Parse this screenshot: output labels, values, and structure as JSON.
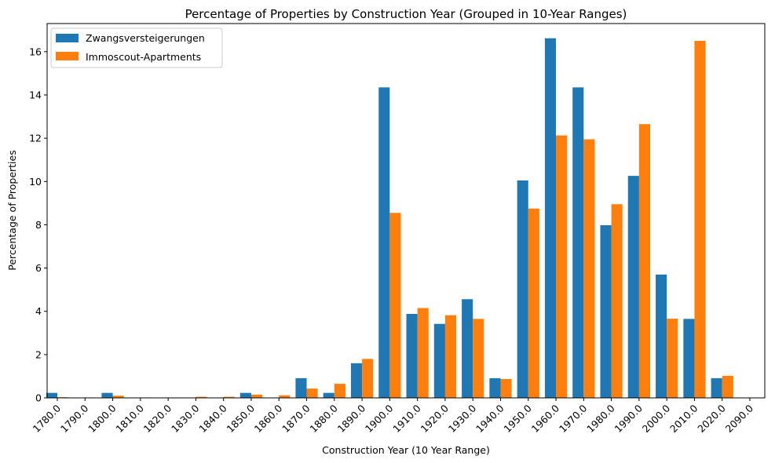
{
  "chart_data": {
    "type": "bar",
    "title": "Percentage of Properties by Construction Year (Grouped in 10-Year Ranges)",
    "xlabel": "Construction Year (10 Year Range)",
    "ylabel": "Percentage of Properties",
    "ylim": [
      0,
      17.3
    ],
    "yticks": [
      0,
      2,
      4,
      6,
      8,
      10,
      12,
      14,
      16
    ],
    "legend_position": "top-left",
    "grid": false,
    "categories": [
      "1780.0",
      "1790.0",
      "1800.0",
      "1810.0",
      "1820.0",
      "1830.0",
      "1840.0",
      "1850.0",
      "1860.0",
      "1870.0",
      "1880.0",
      "1890.0",
      "1900.0",
      "1910.0",
      "1920.0",
      "1930.0",
      "1940.0",
      "1950.0",
      "1960.0",
      "1970.0",
      "1980.0",
      "1990.0",
      "2000.0",
      "2010.0",
      "2020.0",
      "2090.0"
    ],
    "series": [
      {
        "name": "Zwangsversteigerungen",
        "color": "#1f77b4",
        "values": [
          0.23,
          0,
          0.23,
          0,
          0,
          0,
          0,
          0.23,
          0,
          0.91,
          0.23,
          1.6,
          14.35,
          3.88,
          3.42,
          4.56,
          0.91,
          10.05,
          16.62,
          14.35,
          7.98,
          10.26,
          5.7,
          3.65,
          0.91,
          0
        ]
      },
      {
        "name": "Immoscout-Apartments",
        "color": "#ff7f0e",
        "values": [
          0.03,
          0.02,
          0.1,
          0.02,
          0.02,
          0.05,
          0.05,
          0.15,
          0.12,
          0.43,
          0.65,
          1.8,
          8.55,
          4.15,
          3.82,
          3.65,
          0.87,
          8.75,
          12.13,
          11.95,
          8.95,
          12.65,
          3.66,
          16.5,
          1.02,
          0.01
        ]
      }
    ]
  }
}
